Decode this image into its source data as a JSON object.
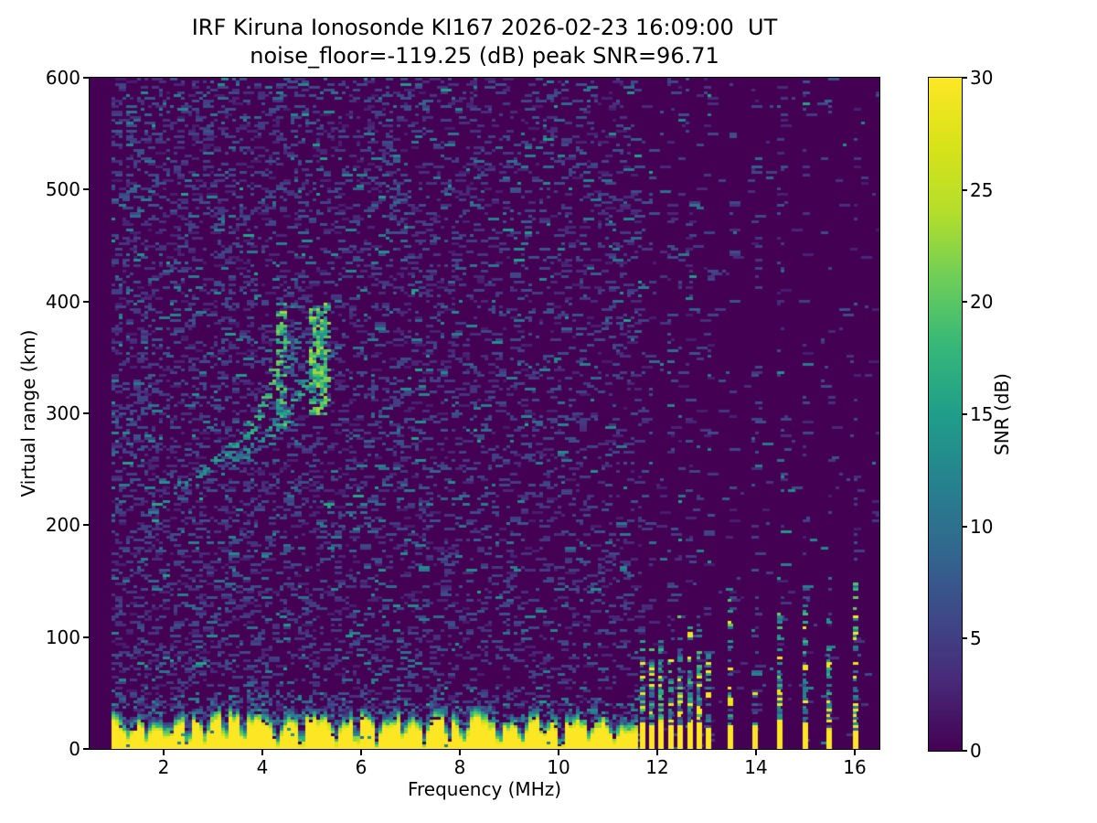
{
  "title": {
    "line1": "IRF Kiruna Ionosonde KI167 2026-02-23 16:09:00  UT",
    "line2": "noise_floor=-119.25 (dB) peak SNR=96.71"
  },
  "chart_data": {
    "type": "heatmap",
    "title": "IRF Kiruna Ionosonde KI167 2026-02-23 16:09:00  UT",
    "subtitle": "noise_floor=-119.25 (dB) peak SNR=96.71",
    "station": "KI167",
    "timestamp_ut": "2026-02-23 16:09:00",
    "noise_floor_db": -119.25,
    "peak_snr_db": 96.71,
    "xlabel": "Frequency (MHz)",
    "ylabel": "Virtual range (km)",
    "xlim": [
      0.5,
      16.5
    ],
    "ylim": [
      0,
      600
    ],
    "xticks": [
      2,
      4,
      6,
      8,
      10,
      12,
      14,
      16
    ],
    "yticks": [
      0,
      100,
      200,
      300,
      400,
      500,
      600
    ],
    "colorbar": {
      "label": "SNR (dB)",
      "ticks": [
        0,
        5,
        10,
        15,
        20,
        25,
        30
      ],
      "range": [
        0,
        30
      ],
      "colormap": "viridis"
    },
    "features": {
      "data_freq_range_mhz": [
        0.95,
        16.45
      ],
      "ground_clutter": {
        "freq_range_mhz": [
          0.95,
          11.63
        ],
        "solid_top_km_typical": [
          18,
          36
        ],
        "fringe_top_km": 52,
        "notches": [
          [
            1.3,
            0.5
          ],
          [
            1.65,
            0.35
          ],
          [
            2.1,
            0.5
          ],
          [
            2.5,
            0.3
          ],
          [
            2.85,
            0.45
          ],
          [
            3.25,
            0.35
          ],
          [
            3.6,
            0.4
          ],
          [
            4.3,
            0.3
          ],
          [
            4.8,
            0.5
          ],
          [
            5.5,
            0.35
          ],
          [
            5.9,
            0.5
          ],
          [
            6.3,
            0.07
          ],
          [
            6.9,
            0.5
          ],
          [
            7.3,
            0.25
          ],
          [
            7.75,
            0.5
          ],
          [
            8.1,
            0.35
          ],
          [
            8.8,
            0.45
          ],
          [
            9.3,
            0.3
          ],
          [
            9.7,
            0.5
          ],
          [
            10.05,
            0.1
          ],
          [
            10.6,
            0.4
          ],
          [
            11.15,
            0.45
          ]
        ]
      },
      "echo_trace": {
        "branches": [
          {
            "name": "o-mode",
            "points": [
              [
                2.2,
                232
              ],
              [
                2.5,
                242
              ],
              [
                2.8,
                252
              ],
              [
                3.1,
                262
              ],
              [
                3.4,
                272
              ],
              [
                3.65,
                283
              ],
              [
                3.9,
                298
              ],
              [
                4.05,
                315
              ],
              [
                4.2,
                340
              ],
              [
                4.3,
                365
              ],
              [
                4.38,
                395
              ]
            ]
          },
          {
            "name": "x-mode",
            "points": [
              [
                3.3,
                258
              ],
              [
                3.6,
                268
              ],
              [
                3.9,
                278
              ],
              [
                4.2,
                290
              ],
              [
                4.5,
                303
              ],
              [
                4.75,
                318
              ],
              [
                4.95,
                338
              ],
              [
                5.1,
                360
              ],
              [
                5.2,
                380
              ],
              [
                5.28,
                398
              ]
            ]
          }
        ],
        "smears": [
          {
            "freq_range_mhz": [
              4.28,
              4.48
            ],
            "range_km": [
              285,
              400
            ],
            "density": 0.5,
            "snr_db": [
              10,
              22
            ]
          },
          {
            "freq_range_mhz": [
              4.95,
              5.32
            ],
            "range_km": [
              300,
              396
            ],
            "density": 0.75,
            "snr_db": [
              12,
              24
            ]
          },
          {
            "freq_range_mhz": [
              4.6,
              4.72
            ],
            "range_km": [
              270,
              430
            ],
            "density": 0.12,
            "snr_db": [
              6,
              12
            ]
          }
        ]
      },
      "diffuse_patch": {
        "freq_range_mhz": [
          6.42,
          6.95
        ],
        "range_km": [
          440,
          532
        ],
        "density": 0.15,
        "snr_db": [
          4,
          10
        ]
      },
      "rfi_dense_freqs_mhz": [
        11.7,
        11.89,
        12.08,
        12.28,
        12.47,
        12.66,
        12.85,
        13.03
      ],
      "rfi_isolated_freqs_mhz": [
        13.48,
        13.98,
        14.49,
        15.0,
        15.48,
        16.02
      ],
      "rfi_column_solid_top_km": [
        18,
        28
      ],
      "rfi_column_speckle_top_km": [
        80,
        160
      ],
      "noise": {
        "dash_density_low_band": 0.28,
        "dash_density_high_band": 0.012,
        "stripe_density": 0.1,
        "snr_db_typical": [
          2,
          7
        ],
        "snr_db_bright": [
          8,
          16
        ]
      }
    }
  },
  "colors": {
    "figure_background": "#ffffff",
    "cmap_low": "#440154",
    "cmap_high": "#fde725",
    "axis": "#000000"
  }
}
